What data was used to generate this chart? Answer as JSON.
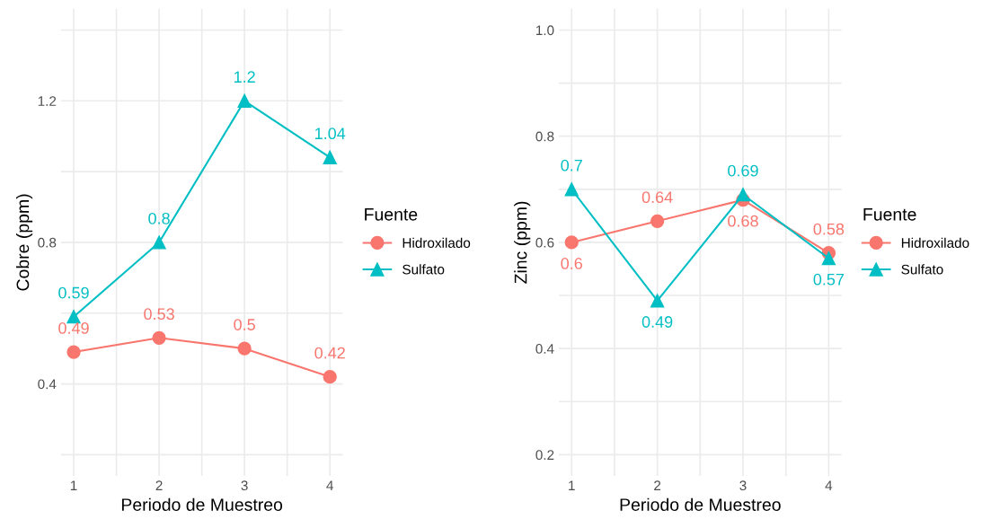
{
  "chart_data": [
    {
      "type": "line",
      "x": [
        1,
        2,
        3,
        4
      ],
      "xlabel": "Periodo de Muestreo",
      "ylabel": "Cobre (ppm)",
      "legend_title": "Fuente",
      "legend": "right",
      "xlim": [
        0.85,
        4.15
      ],
      "xticks": [
        1,
        {
          "value": 1.5,
          "label": null
        },
        2,
        {
          "value": 2.5,
          "label": null
        },
        3,
        {
          "value": 3.5,
          "label": null
        },
        4
      ],
      "ylim": [
        0.14,
        1.46
      ],
      "yticks": [
        {
          "value": 0.2,
          "label": null
        },
        0.4,
        {
          "value": 0.6,
          "label": null
        },
        0.8,
        {
          "value": 1.0,
          "label": null
        },
        1.2,
        {
          "value": 1.4,
          "label": null
        }
      ],
      "grid": true,
      "data_labels": true,
      "series": [
        {
          "name": "Hidroxilado",
          "color": "#f8766d",
          "marker": "circle",
          "values": [
            0.49,
            0.53,
            0.5,
            0.42
          ]
        },
        {
          "name": "Sulfato",
          "color": "#00bfc4",
          "marker": "triangle",
          "values": [
            0.59,
            0.8,
            1.2,
            1.04
          ]
        }
      ]
    },
    {
      "type": "line",
      "x": [
        1,
        2,
        3,
        4
      ],
      "xlabel": "Periodo de Muestreo",
      "ylabel": "Zinc (ppm)",
      "legend_title": "Fuente",
      "legend": "right",
      "xlim": [
        0.85,
        4.15
      ],
      "xticks": [
        1,
        {
          "value": 1.5,
          "label": null
        },
        2,
        {
          "value": 2.5,
          "label": null
        },
        3,
        {
          "value": 3.5,
          "label": null
        },
        4
      ],
      "ylim": [
        0.16,
        1.04
      ],
      "yticks": [
        0.2,
        {
          "value": 0.3,
          "label": null
        },
        0.4,
        {
          "value": 0.5,
          "label": null
        },
        0.6,
        {
          "value": 0.7,
          "label": null
        },
        0.8,
        {
          "value": 0.9,
          "label": null
        },
        {
          "value": 1.0,
          "label": "1.0"
        }
      ],
      "grid": true,
      "data_labels": true,
      "series": [
        {
          "name": "Hidroxilado",
          "color": "#f8766d",
          "marker": "circle",
          "values": [
            0.6,
            0.64,
            0.68,
            0.58
          ]
        },
        {
          "name": "Sulfato",
          "color": "#00bfc4",
          "marker": "triangle",
          "values": [
            0.7,
            0.49,
            0.69,
            0.57
          ]
        }
      ]
    }
  ]
}
